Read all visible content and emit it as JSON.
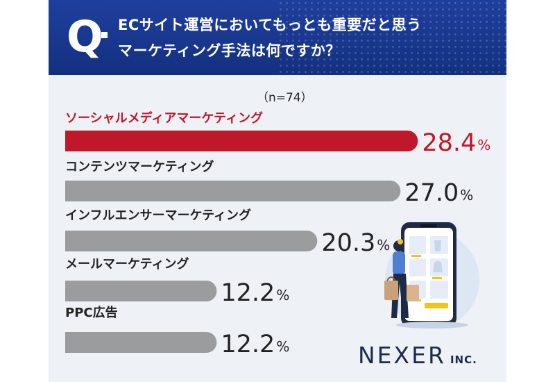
{
  "question": {
    "mark": "Q",
    "line1": "ECサイト運営においてもっとも重要だと思う",
    "line2": "マーケティング手法は何ですか？"
  },
  "n_label": "（n=74）",
  "chart_data": {
    "type": "bar",
    "orientation": "horizontal",
    "categories": [
      "ソーシャルメディアマーケティング",
      "コンテンツマーケティング",
      "インフルエンサーマーケティング",
      "メールマーケティング",
      "PPC広告"
    ],
    "values": [
      28.4,
      27.0,
      20.3,
      12.2,
      12.2
    ],
    "value_labels": [
      "28.4",
      "27.0",
      "20.3",
      "12.2",
      "12.2"
    ],
    "unit": "%",
    "highlight_index": 0,
    "colors": {
      "highlight": "#c0182b",
      "default": "#9b9c9e"
    }
  },
  "logo": {
    "main": "NEXER",
    "sub": "INC."
  }
}
